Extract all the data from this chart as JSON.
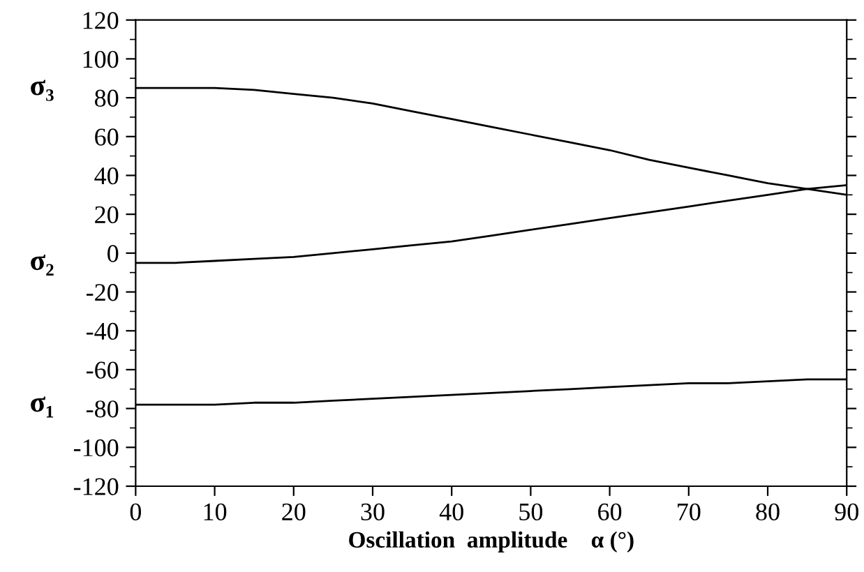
{
  "chart_data": {
    "type": "line",
    "xlabel": "Oscillation  amplitude    α (°)",
    "x": [
      0,
      5,
      10,
      15,
      20,
      25,
      30,
      35,
      40,
      45,
      50,
      55,
      60,
      65,
      70,
      75,
      80,
      85,
      90
    ],
    "series": [
      {
        "name": "σ₃",
        "color": "#000000",
        "values": [
          85,
          85,
          85,
          84,
          82,
          80,
          77,
          73,
          69,
          65,
          61,
          57,
          53,
          48,
          44,
          40,
          36,
          33,
          30
        ]
      },
      {
        "name": "σ₂",
        "color": "#000000",
        "values": [
          -5,
          -5,
          -4,
          -3,
          -2,
          0,
          2,
          4,
          6,
          9,
          12,
          15,
          18,
          21,
          24,
          27,
          30,
          33,
          35
        ]
      },
      {
        "name": "σ₁",
        "color": "#000000",
        "values": [
          -78,
          -78,
          -78,
          -77,
          -77,
          -76,
          -75,
          -74,
          -73,
          -72,
          -71,
          -70,
          -69,
          -68,
          -67,
          -67,
          -66,
          -65,
          -65
        ]
      }
    ],
    "xlim": [
      0,
      90
    ],
    "xticks": [
      0,
      10,
      20,
      30,
      40,
      50,
      60,
      70,
      80,
      90
    ],
    "ylim": [
      -120,
      120
    ],
    "yticks": [
      -120,
      -100,
      -80,
      -60,
      -40,
      -20,
      0,
      20,
      40,
      60,
      80,
      100,
      120
    ],
    "grid": false,
    "legend": false,
    "marker": "none",
    "line_style": "solid"
  }
}
